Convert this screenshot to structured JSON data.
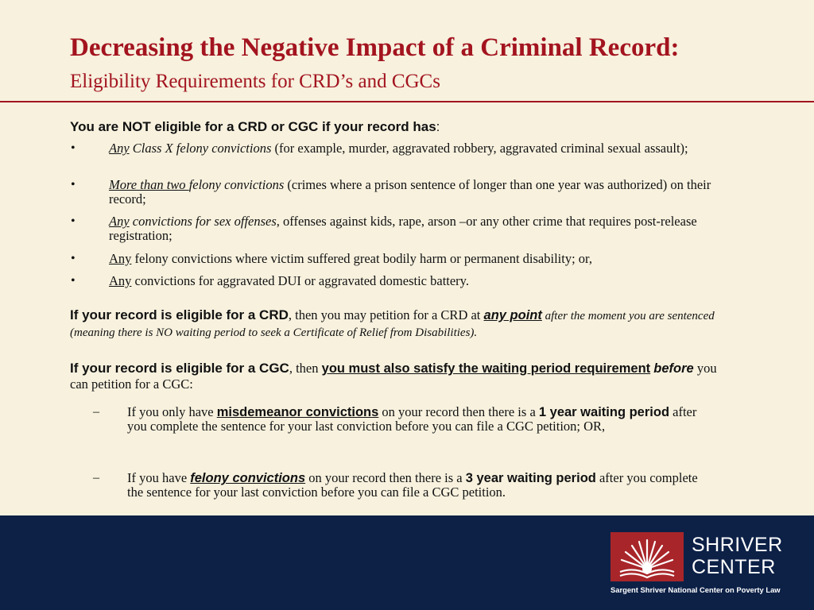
{
  "slide": {
    "title": "Decreasing the Negative Impact of a Criminal Record:",
    "subtitle": "Eligibility Requirements for CRD’s and CGCs"
  },
  "not_eligible": {
    "heading": [
      {
        "text": "You are NOT eligible for a CRD or CGC if your record has",
        "style": ""
      },
      {
        "text": ":",
        "style": ""
      }
    ],
    "bullet_symbol": "•",
    "items": [
      {
        "segments": [
          {
            "text": "Any",
            "style": "u i"
          },
          {
            "text": " Class X felony convictions",
            "style": "i"
          },
          {
            "text": " (for example, murder, aggravated robbery, aggravated criminal sexual assault);",
            "style": ""
          }
        ]
      },
      {
        "segments": [
          {
            "text": "More than two ",
            "style": "u i"
          },
          {
            "text": "felony convictions",
            "style": "i"
          },
          {
            "text": " (crimes where a prison sentence of longer than one year was authorized) on their record;",
            "style": ""
          }
        ]
      },
      {
        "segments": [
          {
            "text": "Any",
            "style": "u i"
          },
          {
            "text": " convictions for sex offenses",
            "style": "i"
          },
          {
            "text": ", offenses against kids, rape, arson –or any other crime that requires post-release registration;",
            "style": ""
          }
        ]
      },
      {
        "segments": [
          {
            "text": "Any",
            "style": "u"
          },
          {
            "text": " felony convictions where victim suffered great bodily harm or permanent disability; or,",
            "style": ""
          }
        ]
      },
      {
        "segments": [
          {
            "text": "Any",
            "style": "u"
          },
          {
            "text": " convictions for aggravated DUI or aggravated domestic battery.",
            "style": ""
          }
        ]
      }
    ]
  },
  "crd": {
    "segments": [
      {
        "text": "If your record is eligible for a CRD",
        "style": "lead"
      },
      {
        "text": ", then you may petition for a CRD at ",
        "style": ""
      },
      {
        "text": "any point",
        "style": "b i u sans"
      },
      {
        "text": " after the moment you are sentenced (meaning there is NO waiting period to seek a Certificate of Relief from Disabilities).",
        "style": "sm-it"
      }
    ]
  },
  "cgc": {
    "segments": [
      {
        "text": "If your record is eligible for a CGC",
        "style": "lead"
      },
      {
        "text": ", then ",
        "style": ""
      },
      {
        "text": "you must also satisfy the waiting period requirement",
        "style": "b u sans"
      },
      {
        "text": " ",
        "style": ""
      },
      {
        "text": "before",
        "style": "b i sans"
      },
      {
        "text": " you can petition for a CGC:",
        "style": ""
      }
    ],
    "dash_symbol": "–",
    "sub_items": [
      {
        "segments": [
          {
            "text": "If you only have ",
            "style": ""
          },
          {
            "text": "misdemeanor convictions",
            "style": "b u sans"
          },
          {
            "text": " on your record then there is a ",
            "style": ""
          },
          {
            "text": "1 year waiting period",
            "style": "b sans"
          },
          {
            "text": " after you complete the sentence for your last conviction before you can file a CGC petition; OR,",
            "style": ""
          }
        ]
      },
      {
        "segments": [
          {
            "text": "If you have ",
            "style": ""
          },
          {
            "text": "felony convictions",
            "style": "b i u sans"
          },
          {
            "text": " on your record then there is a ",
            "style": ""
          },
          {
            "text": "3 year waiting period",
            "style": "b sans"
          },
          {
            "text": " after you complete the sentence for your last conviction before you can file a CGC petition.",
            "style": ""
          }
        ]
      }
    ]
  },
  "footer": {
    "background": "#0d2147",
    "logo": {
      "name_line1": "SHRIVER",
      "name_line2": "CENTER",
      "tagline": "Sargent Shriver National Center on Poverty Law",
      "box_color": "#a8262a",
      "icon": "sunburst-book-icon"
    }
  },
  "colors": {
    "accent": "#a3141f",
    "background": "#f7f1de"
  }
}
